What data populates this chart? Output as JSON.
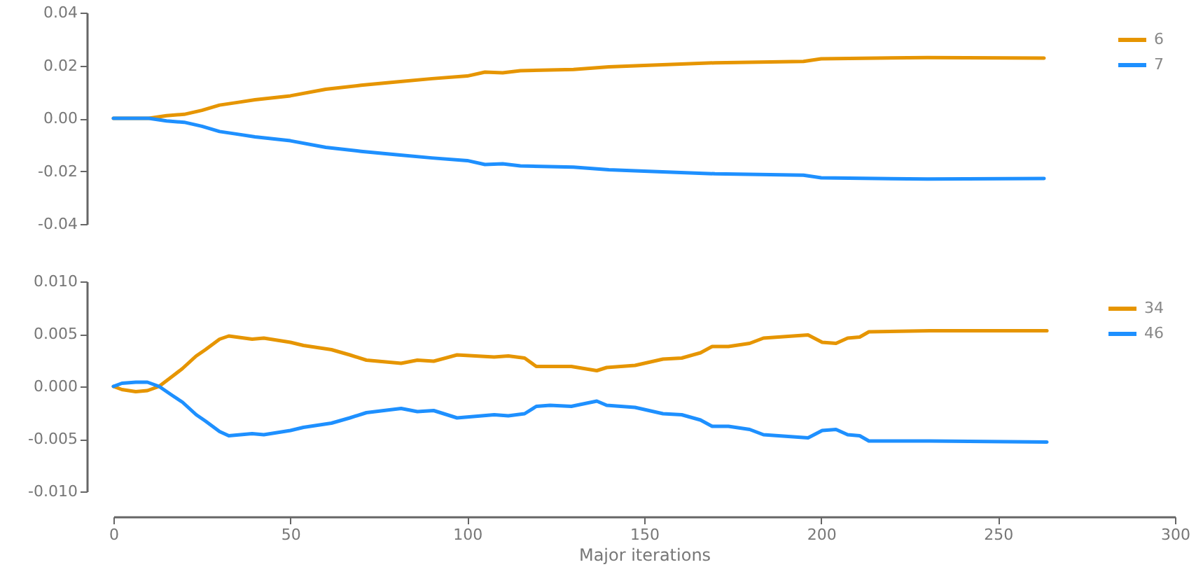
{
  "chart_data": [
    {
      "type": "line",
      "xlim": [
        0,
        300
      ],
      "ylim": [
        -0.04,
        0.04
      ],
      "yticks": [
        {
          "value": -0.04,
          "label": "-0.04"
        },
        {
          "value": -0.02,
          "label": "-0.02"
        },
        {
          "value": 0,
          "label": "0.00"
        },
        {
          "value": 0.02,
          "label": "0.02"
        },
        {
          "value": 0.04,
          "label": "0.04"
        }
      ],
      "tick_labels": "y",
      "grid": false,
      "legend": "top right",
      "line_style": "solid",
      "marker": "none",
      "x": [
        0,
        10,
        15,
        20,
        25,
        30,
        35,
        40,
        50,
        60,
        70,
        80,
        90,
        100,
        105,
        110,
        115,
        130,
        140,
        150,
        170,
        195,
        200,
        230,
        263
      ],
      "series": [
        {
          "name": "6",
          "color": "#e69500",
          "values": [
            0,
            0,
            0.001,
            0.0015,
            0.003,
            0.005,
            0.006,
            0.007,
            0.0085,
            0.011,
            0.0125,
            0.0138,
            0.015,
            0.016,
            0.0175,
            0.0172,
            0.018,
            0.0185,
            0.0195,
            0.02,
            0.021,
            0.0215,
            0.0225,
            0.023,
            0.0228
          ]
        },
        {
          "name": "7",
          "color": "#1e90ff",
          "values": [
            0,
            0,
            -0.001,
            -0.0015,
            -0.003,
            -0.005,
            -0.006,
            -0.007,
            -0.0085,
            -0.011,
            -0.0125,
            -0.0138,
            -0.015,
            -0.016,
            -0.0175,
            -0.0172,
            -0.018,
            -0.0185,
            -0.0195,
            -0.02,
            -0.021,
            -0.0215,
            -0.0225,
            -0.023,
            -0.0228
          ]
        }
      ]
    },
    {
      "type": "line",
      "xlabel": "Major iterations",
      "xlim": [
        0,
        300
      ],
      "xticks": [
        0,
        50,
        100,
        150,
        200,
        250,
        300
      ],
      "ylim": [
        -0.01,
        0.01
      ],
      "yticks": [
        {
          "value": -0.01,
          "label": "-0.010"
        },
        {
          "value": -0.005,
          "label": "-0.005"
        },
        {
          "value": 0,
          "label": "0.000"
        },
        {
          "value": 0.005,
          "label": "0.005"
        },
        {
          "value": 0.01,
          "label": "0.010"
        }
      ],
      "grid": false,
      "legend": "top right",
      "line_style": "solid",
      "marker": "none",
      "x": [
        0,
        2.4,
        6.3,
        9.6,
        12.9,
        16.8,
        19.5,
        23.4,
        26,
        30,
        32.6,
        39.2,
        42.5,
        50,
        53.7,
        61.6,
        66.8,
        71.5,
        81.3,
        85.9,
        90.5,
        97.1,
        107.6,
        111.6,
        116.2,
        119.5,
        123.4,
        129.4,
        136.6,
        139.4,
        147.4,
        155.3,
        160.6,
        165.9,
        169.2,
        173.8,
        179.8,
        183.7,
        196.3,
        200.3,
        204.2,
        207.5,
        210.9,
        213.5,
        230.7,
        263.8
      ],
      "series": [
        {
          "name": "34",
          "color": "#e69500",
          "values": [
            0,
            -0.0003,
            -0.0005,
            -0.0004,
            0,
            0.001,
            0.0017,
            0.0029,
            0.0035,
            0.0045,
            0.0048,
            0.0045,
            0.0046,
            0.0042,
            0.0039,
            0.0035,
            0.003,
            0.0025,
            0.0022,
            0.0025,
            0.0024,
            0.003,
            0.0028,
            0.0029,
            0.0027,
            0.0019,
            0.0019,
            0.0019,
            0.0015,
            0.0018,
            0.002,
            0.0026,
            0.0027,
            0.0032,
            0.0038,
            0.0038,
            0.0041,
            0.0046,
            0.0049,
            0.0042,
            0.0041,
            0.0046,
            0.0047,
            0.0052,
            0.0053,
            0.0053
          ]
        },
        {
          "name": "46",
          "color": "#1e90ff",
          "values": [
            0,
            0.0003,
            0.0004,
            0.0004,
            0,
            -0.0009,
            -0.0015,
            -0.0027,
            -0.0033,
            -0.0043,
            -0.0047,
            -0.0045,
            -0.0046,
            -0.0042,
            -0.0039,
            -0.0035,
            -0.003,
            -0.0025,
            -0.0021,
            -0.0024,
            -0.0023,
            -0.003,
            -0.0027,
            -0.0028,
            -0.0026,
            -0.0019,
            -0.0018,
            -0.0019,
            -0.0014,
            -0.0018,
            -0.002,
            -0.0026,
            -0.0027,
            -0.0032,
            -0.0038,
            -0.0038,
            -0.0041,
            -0.0046,
            -0.0049,
            -0.0042,
            -0.0041,
            -0.0046,
            -0.0047,
            -0.0052,
            -0.0052,
            -0.0053
          ]
        }
      ]
    }
  ]
}
